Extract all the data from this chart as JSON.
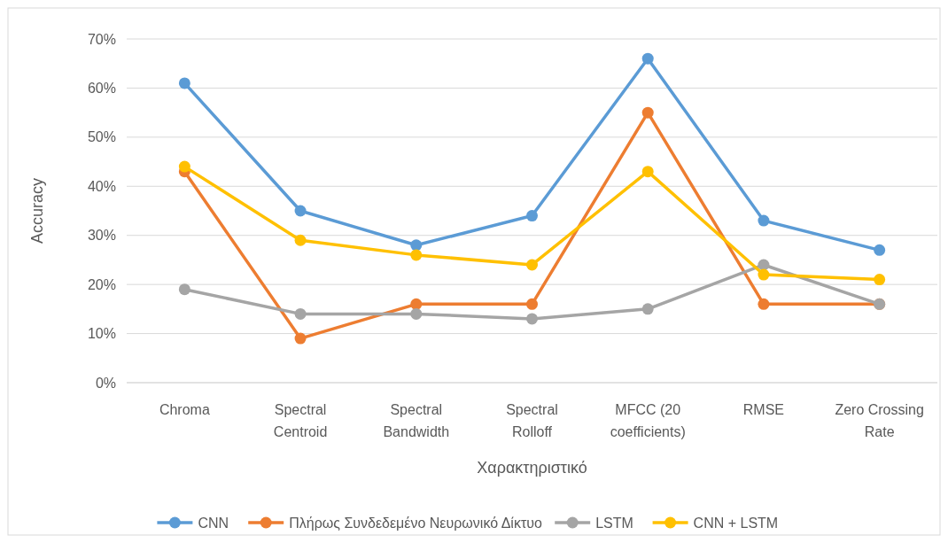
{
  "chart_data": {
    "type": "line",
    "xlabel": "Χαρακτηριστικό",
    "ylabel": "Accuracy",
    "categories": [
      "Chroma",
      "Spectral Centroid",
      "Spectral Bandwidth",
      "Spectral Rolloff",
      "MFCC (20 coefficients)",
      "RMSE",
      "Zero Crossing Rate"
    ],
    "series": [
      {
        "name": "CNN",
        "color": "#5b9bd5",
        "values": [
          61,
          35,
          28,
          34,
          66,
          33,
          27
        ]
      },
      {
        "name": "Πλήρως Συνδεδεμένο Νευρωνικό Δίκτυο",
        "color": "#ed7d31",
        "values": [
          43,
          9,
          16,
          16,
          55,
          16,
          16
        ]
      },
      {
        "name": "LSTM",
        "color": "#a5a5a5",
        "values": [
          19,
          14,
          14,
          13,
          15,
          24,
          16
        ]
      },
      {
        "name": "CNN + LSTM",
        "color": "#ffc000",
        "values": [
          44,
          29,
          26,
          24,
          43,
          22,
          21
        ]
      }
    ],
    "ylim": [
      0,
      70
    ],
    "yticks": [
      {
        "value": 0,
        "label": "0%"
      },
      {
        "value": 10,
        "label": "10%"
      },
      {
        "value": 20,
        "label": "20%"
      },
      {
        "value": 30,
        "label": "30%"
      },
      {
        "value": 40,
        "label": "40%"
      },
      {
        "value": 50,
        "label": "50%"
      },
      {
        "value": 60,
        "label": "60%"
      },
      {
        "value": 70,
        "label": "70%"
      }
    ],
    "grid": "y",
    "legend": "bottom",
    "marker": "circle",
    "line_style": "solid"
  }
}
